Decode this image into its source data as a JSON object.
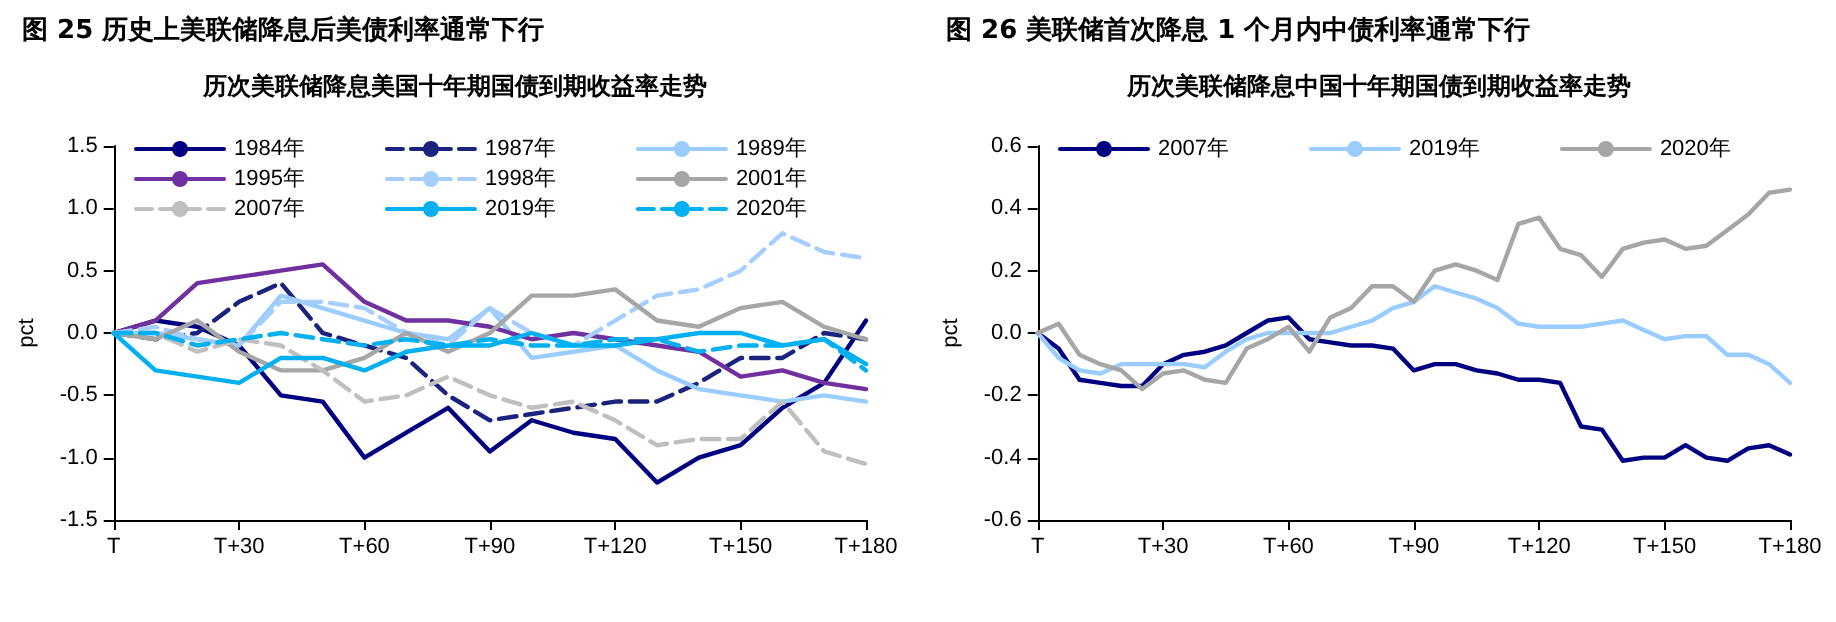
{
  "chart_data": [
    {
      "type": "line",
      "title": "图 25 历史上美联储降息后美债利率通常下行",
      "subtitle": "历次美联储降息美国十年期国债到期收益率走势",
      "ylabel": "pct",
      "categories": [
        "T",
        null,
        null,
        "T+30",
        null,
        null,
        "T+60",
        null,
        null,
        "T+90",
        null,
        null,
        "T+120",
        null,
        null,
        "T+150",
        null,
        null,
        "T+180"
      ],
      "ylim": [
        -1.5,
        1.5
      ],
      "yticks": [
        {
          "value": -1.5,
          "label": "-1.5"
        },
        {
          "value": -1,
          "label": "-1.0"
        },
        {
          "value": -0.5,
          "label": "-0.5"
        },
        {
          "value": 0,
          "label": "0.0"
        },
        0.5,
        {
          "value": 1,
          "label": "1.0"
        },
        1.5
      ],
      "grid": false,
      "legend": "top",
      "marker": "none",
      "series": [
        {
          "name": "1984年",
          "color": "#000080",
          "line_style": "solid",
          "values": [
            0,
            0.1,
            0.05,
            -0.1,
            -0.5,
            -0.55,
            -1.0,
            -0.8,
            -0.6,
            -0.95,
            -0.7,
            -0.8,
            -0.85,
            -1.2,
            -1.0,
            -0.9,
            -0.6,
            -0.4,
            0.1
          ]
        },
        {
          "name": "1987年",
          "color": "#1a237e",
          "line_style": "dashed",
          "values": [
            0,
            -0.05,
            0,
            0.25,
            0.4,
            0,
            -0.1,
            -0.2,
            -0.5,
            -0.7,
            -0.65,
            -0.6,
            -0.55,
            -0.55,
            -0.4,
            -0.2,
            -0.2,
            0,
            -0.05
          ]
        },
        {
          "name": "1989年",
          "color": "#99ccff",
          "line_style": "solid",
          "values": [
            0,
            0,
            -0.05,
            -0.1,
            0.3,
            0.2,
            0.1,
            0,
            -0.05,
            0.2,
            -0.2,
            -0.15,
            -0.1,
            -0.3,
            -0.45,
            -0.5,
            -0.55,
            -0.5,
            -0.55
          ]
        },
        {
          "name": "1995年",
          "color": "#7030a0",
          "line_style": "solid",
          "values": [
            0,
            0.1,
            0.4,
            0.45,
            0.5,
            0.55,
            0.25,
            0.1,
            0.1,
            0.05,
            -0.05,
            0,
            -0.05,
            -0.1,
            -0.15,
            -0.35,
            -0.3,
            -0.4,
            -0.45
          ]
        },
        {
          "name": "1998年",
          "color": "#a6cfff",
          "line_style": "dashed",
          "values": [
            0,
            0.05,
            -0.05,
            -0.1,
            0.25,
            0.25,
            0.2,
            0,
            -0.1,
            0.2,
            0,
            -0.1,
            0.1,
            0.3,
            0.35,
            0.5,
            0.8,
            0.65,
            0.6
          ]
        },
        {
          "name": "2001年",
          "color": "#a6a6a6",
          "line_style": "solid",
          "values": [
            0,
            -0.05,
            0.1,
            -0.15,
            -0.3,
            -0.3,
            -0.2,
            0,
            -0.15,
            0,
            0.3,
            0.3,
            0.35,
            0.1,
            0.05,
            0.2,
            0.25,
            0.05,
            -0.05
          ]
        },
        {
          "name": "2007年",
          "color": "#bfbfbf",
          "line_style": "dashed",
          "values": [
            0,
            0,
            -0.15,
            -0.05,
            -0.1,
            -0.3,
            -0.55,
            -0.5,
            -0.35,
            -0.5,
            -0.6,
            -0.55,
            -0.7,
            -0.9,
            -0.85,
            -0.85,
            -0.55,
            -0.95,
            -1.05
          ]
        },
        {
          "name": "2019年",
          "color": "#00b0f0",
          "line_style": "solid",
          "values": [
            0,
            -0.3,
            -0.35,
            -0.4,
            -0.2,
            -0.2,
            -0.3,
            -0.15,
            -0.1,
            -0.1,
            0,
            -0.1,
            -0.1,
            -0.05,
            0,
            0,
            -0.1,
            -0.05,
            -0.25
          ]
        },
        {
          "name": "2020年",
          "color": "#00b0f0",
          "line_style": "dashed",
          "values": [
            0,
            0,
            -0.1,
            -0.05,
            0,
            -0.05,
            -0.1,
            -0.05,
            -0.1,
            -0.05,
            -0.1,
            -0.1,
            -0.05,
            -0.05,
            -0.15,
            -0.1,
            -0.1,
            -0.05,
            -0.3
          ]
        }
      ]
    },
    {
      "type": "line",
      "title": "图 26 美联储首次降息 1 个月内中债利率通常下行",
      "subtitle": "历次美联储降息中国十年期国债到期收益率走势",
      "ylabel": "pct",
      "categories": [
        "T",
        null,
        null,
        null,
        null,
        null,
        "T+30",
        null,
        null,
        null,
        null,
        null,
        "T+60",
        null,
        null,
        null,
        null,
        null,
        "T+90",
        null,
        null,
        null,
        null,
        null,
        "T+120",
        null,
        null,
        null,
        null,
        null,
        "T+150",
        null,
        null,
        null,
        null,
        null,
        "T+180"
      ],
      "ylim": [
        -0.6,
        0.6
      ],
      "yticks": [
        -0.6,
        -0.4,
        -0.2,
        {
          "value": 0,
          "label": "0.0"
        },
        0.2,
        0.4,
        0.6
      ],
      "grid": false,
      "legend": "top",
      "marker": "none",
      "series": [
        {
          "name": "2007年",
          "color": "#000080",
          "line_style": "solid",
          "values": [
            0,
            -0.05,
            -0.15,
            -0.16,
            -0.17,
            -0.17,
            -0.1,
            -0.07,
            -0.06,
            -0.04,
            0,
            0.04,
            0.05,
            -0.02,
            -0.03,
            -0.04,
            -0.04,
            -0.05,
            -0.12,
            -0.1,
            -0.1,
            -0.12,
            -0.13,
            -0.15,
            -0.15,
            -0.16,
            -0.3,
            -0.31,
            -0.41,
            -0.4,
            -0.4,
            -0.36,
            -0.4,
            -0.41,
            -0.37,
            -0.36,
            -0.39
          ]
        },
        {
          "name": "2019年",
          "color": "#99ccff",
          "line_style": "solid",
          "values": [
            0,
            -0.08,
            -0.12,
            -0.13,
            -0.1,
            -0.1,
            -0.1,
            -0.1,
            -0.11,
            -0.06,
            -0.02,
            0,
            0,
            0,
            0,
            0.02,
            0.04,
            0.08,
            0.1,
            0.15,
            0.13,
            0.11,
            0.08,
            0.03,
            0.02,
            0.02,
            0.02,
            0.03,
            0.04,
            0.01,
            -0.02,
            -0.01,
            -0.01,
            -0.07,
            -0.07,
            -0.1,
            -0.16
          ]
        },
        {
          "name": "2020年",
          "color": "#a6a6a6",
          "line_style": "solid",
          "values": [
            0,
            0.03,
            -0.07,
            -0.1,
            -0.12,
            -0.18,
            -0.13,
            -0.12,
            -0.15,
            -0.16,
            -0.05,
            -0.02,
            0.02,
            -0.06,
            0.05,
            0.08,
            0.15,
            0.15,
            0.1,
            0.2,
            0.22,
            0.2,
            0.17,
            0.35,
            0.37,
            0.27,
            0.25,
            0.18,
            0.27,
            0.29,
            0.3,
            0.27,
            0.28,
            0.33,
            0.38,
            0.45,
            0.46
          ]
        }
      ]
    }
  ]
}
